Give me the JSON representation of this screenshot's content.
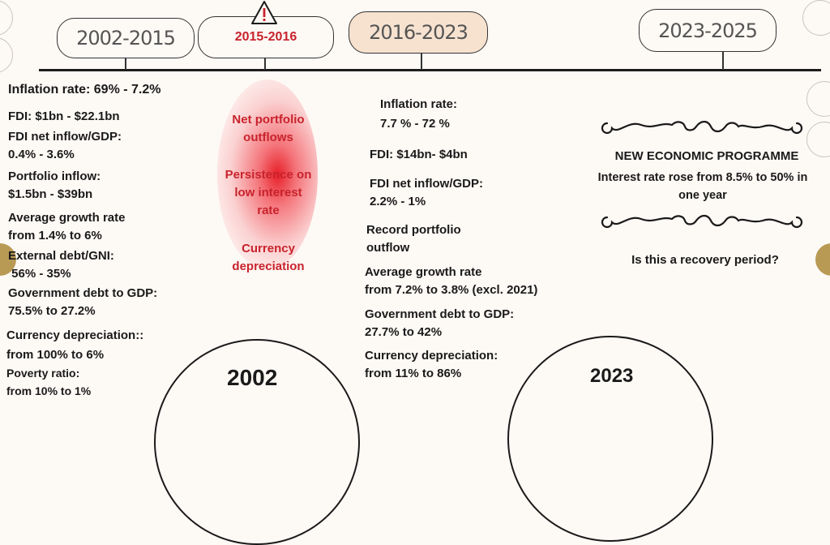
{
  "timeline": {
    "periods": [
      {
        "label": "2002-2015"
      },
      {
        "label": "2015-2016"
      },
      {
        "label": "2016-2023"
      },
      {
        "label": "2023-2025"
      }
    ],
    "colors": {
      "background": "#fdf9f5",
      "accent_red": "#c8232c",
      "highlight_box": "#f7e2d0",
      "gold_dot": "#b99a55"
    }
  },
  "col1": {
    "items": [
      "Inflation rate: 69% - 7.2%",
      "FDI: $1bn - $22.1bn",
      "FDI net inflow/GDP:",
      "0.4% - 3.6%",
      "Portfolio inflow:",
      "$1.5bn - $39bn",
      "Average growth rate",
      "from 1.4% to 6%",
      "External debt/GNI:",
      " 56% - 35%",
      "Government debt to GDP:",
      "75.5% to 27.2%",
      "Currency depreciation::",
      "from 100% to 6%",
      "Poverty ratio:",
      "from 10% to 1%"
    ],
    "year": "2002"
  },
  "col2": {
    "items": [
      "Net portfolio",
      "outflows",
      "Persistence on",
      "low interest",
      "rate",
      "Currency",
      "depreciation"
    ]
  },
  "col3": {
    "items": [
      "Inflation rate:",
      "7.7 % - 72 %",
      "FDI: $14bn- $4bn",
      "FDI net inflow/GDP:",
      "2.2% - 1%",
      "Record portfolio",
      "outflow",
      "Average growth rate",
      "from 7.2% to 3.8% (excl. 2021)",
      "Government debt to GDP:",
      "27.7% to 42%",
      "Currency depreciation:",
      "from 11% to 86%"
    ],
    "year": "2023"
  },
  "col4": {
    "heading": "NEW ECONOMIC PROGRAMME",
    "line1": "Interest rate rose from 8.5% to 50% in",
    "line2": "one year",
    "question": "Is this a recovery period?"
  },
  "icons": {
    "warning": "warning-icon",
    "flourish": "flourish-divider-icon"
  }
}
